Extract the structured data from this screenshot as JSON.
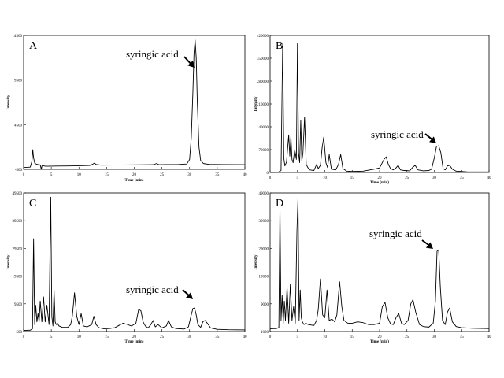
{
  "chart_data": [
    {
      "type": "line",
      "panel_label": "A",
      "xlabel": "Time (min)",
      "ylabel": "Intensity",
      "xlim": [
        0,
        40
      ],
      "ylim": [
        -500,
        14500
      ],
      "x_ticks": [
        0,
        5,
        10,
        15,
        20,
        25,
        30,
        35,
        40
      ],
      "y_ticks": [
        -500,
        4500,
        9500,
        14500
      ],
      "x_tick_labels": [
        "0",
        "5",
        "10",
        "15",
        "20",
        "25",
        "30",
        "35",
        "40"
      ],
      "y_tick_labels": [
        "-500",
        "4500",
        "9500",
        "14500"
      ],
      "annotation": {
        "text": "syringic acid",
        "x": 31.0,
        "y": 14000
      },
      "series": [
        {
          "x": [
            0,
            1.2,
            1.5,
            1.65,
            1.8,
            2.0,
            2.3,
            2.7,
            3.0,
            3.2,
            3.35,
            3.5,
            4,
            6,
            8,
            10,
            12,
            12.5,
            12.8,
            13.1,
            14,
            18,
            22,
            23.5,
            24,
            24.5,
            26,
            28,
            29.5,
            30.0,
            30.3,
            30.6,
            30.8,
            31.0,
            31.2,
            31.4,
            31.7,
            32.0,
            32.5,
            33.5,
            36,
            40
          ],
          "y": [
            -300,
            -250,
            400,
            1700,
            800,
            200,
            80,
            20,
            0,
            -700,
            0,
            -100,
            -150,
            -130,
            -120,
            -100,
            -60,
            80,
            200,
            40,
            -30,
            -10,
            10,
            20,
            150,
            20,
            30,
            50,
            100,
            600,
            3000,
            8200,
            12500,
            14000,
            12000,
            7000,
            2000,
            500,
            150,
            60,
            30,
            20
          ]
        }
      ]
    },
    {
      "type": "line",
      "panel_label": "B",
      "xlabel": "Time (min)",
      "ylabel": "Intensity",
      "xlim": [
        0,
        40
      ],
      "ylim": [
        0,
        420000
      ],
      "x_ticks": [
        0,
        5,
        10,
        15,
        20,
        25,
        30,
        35,
        40
      ],
      "y_ticks": [
        0,
        70000,
        140000,
        210000,
        280000,
        350000,
        420000
      ],
      "x_tick_labels": [
        "0",
        "5",
        "10",
        "15",
        "20",
        "25",
        "30",
        "35",
        "40"
      ],
      "y_tick_labels": [
        "0",
        "70000",
        "140000",
        "210000",
        "280000",
        "350000",
        "420000"
      ],
      "annotation": {
        "text": "syringic acid",
        "x": 30.5,
        "y": 84000
      },
      "series": [
        {
          "x": [
            0,
            1.5,
            2.0,
            2.3,
            2.5,
            2.7,
            3.0,
            3.4,
            3.6,
            3.8,
            4.0,
            4.2,
            4.5,
            4.8,
            5.0,
            5.2,
            5.4,
            5.6,
            5.8,
            6.0,
            6.3,
            6.6,
            6.9,
            7.2,
            8.0,
            8.5,
            8.8,
            9.2,
            9.5,
            9.8,
            10.2,
            10.5,
            10.8,
            11.2,
            12.0,
            12.5,
            12.9,
            13.3,
            14,
            15,
            17,
            19,
            20,
            20.8,
            21.2,
            21.6,
            22,
            22.5,
            23.0,
            23.4,
            23.8,
            24.5,
            25.5,
            26.0,
            26.5,
            27.0,
            28,
            29,
            29.5,
            30.0,
            30.4,
            30.8,
            31.2,
            31.6,
            32.0,
            32.4,
            32.8,
            33.3,
            34.0,
            36,
            40
          ],
          "y": [
            0,
            1000,
            6000,
            395000,
            45000,
            20000,
            32000,
            115000,
            50000,
            110000,
            40000,
            30000,
            70000,
            40000,
            395000,
            60000,
            30000,
            160000,
            35000,
            60000,
            170000,
            25000,
            15000,
            8000,
            6000,
            25000,
            12000,
            22000,
            75000,
            108000,
            30000,
            15000,
            55000,
            10000,
            8000,
            25000,
            55000,
            12000,
            4000,
            3000,
            4000,
            10000,
            14000,
            40000,
            48000,
            25000,
            12000,
            8000,
            14000,
            22000,
            8000,
            6000,
            5000,
            15000,
            22000,
            8000,
            5000,
            6000,
            10000,
            45000,
            80000,
            82000,
            60000,
            12000,
            8000,
            20000,
            22000,
            10000,
            4000,
            2000,
            1500
          ]
        }
      ]
    },
    {
      "type": "line",
      "panel_label": "C",
      "xlabel": "Time (min)",
      "ylabel": "Intensity",
      "xlim": [
        0,
        40
      ],
      "ylim": [
        -500,
        49500
      ],
      "x_ticks": [
        0,
        5,
        10,
        15,
        20,
        25,
        30,
        35,
        40
      ],
      "y_ticks": [
        -500,
        9500,
        19500,
        29500,
        39500,
        49500
      ],
      "x_tick_labels": [
        "0",
        "5",
        "10",
        "15",
        "20",
        "25",
        "30",
        "35",
        "40"
      ],
      "y_tick_labels": [
        "-500",
        "9500",
        "19500",
        "29500",
        "39500",
        "49500"
      ],
      "annotation": {
        "text": "syringic acid",
        "x": 30.8,
        "y": 7700
      },
      "series": [
        {
          "x": [
            0,
            1.2,
            1.6,
            1.8,
            2.0,
            2.2,
            2.4,
            2.6,
            2.8,
            3.0,
            3.3,
            3.6,
            3.9,
            4.2,
            4.6,
            4.9,
            5.1,
            5.3,
            5.5,
            5.7,
            5.9,
            6.1,
            6.4,
            7,
            8,
            8.5,
            8.8,
            9.2,
            9.6,
            10.0,
            10.4,
            10.8,
            11.5,
            12.3,
            12.7,
            13.1,
            13.6,
            14.5,
            15.5,
            16.5,
            17.5,
            18,
            18.5,
            19.5,
            20.3,
            20.8,
            21.2,
            21.6,
            22,
            22.5,
            23.0,
            23.4,
            23.8,
            24.3,
            25,
            25.8,
            26.2,
            26.7,
            27.5,
            29,
            29.8,
            30.3,
            30.6,
            30.9,
            31.2,
            31.5,
            32.0,
            32.4,
            32.8,
            33.2,
            33.8,
            35,
            37,
            40
          ],
          "y": [
            -100,
            0,
            500,
            33000,
            2000,
            9000,
            3000,
            6000,
            3000,
            10500,
            3000,
            12000,
            3000,
            9000,
            2000,
            48000,
            5000,
            1500,
            14500,
            3000,
            2000,
            2500,
            1500,
            1000,
            1000,
            2000,
            5000,
            13500,
            5000,
            2000,
            6000,
            1500,
            1200,
            2000,
            5000,
            2000,
            900,
            500,
            600,
            900,
            2000,
            2500,
            2200,
            1500,
            2500,
            7500,
            7000,
            3000,
            1500,
            800,
            2000,
            3500,
            1200,
            2000,
            800,
            1500,
            3500,
            1200,
            600,
            400,
            1200,
            5500,
            7800,
            8000,
            5500,
            2000,
            1000,
            3000,
            3500,
            2500,
            800,
            300,
            150,
            100
          ]
        }
      ]
    },
    {
      "type": "line",
      "panel_label": "D",
      "xlabel": "Time (min)",
      "ylabel": "Intensity",
      "xlim": [
        0,
        40
      ],
      "ylim": [
        -1000,
        49000
      ],
      "x_ticks": [
        0,
        5,
        10,
        15,
        20,
        25,
        30,
        35,
        40
      ],
      "y_ticks": [
        -1000,
        9000,
        19000,
        29000,
        39000,
        49000
      ],
      "x_tick_labels": [
        "0",
        "5",
        "10",
        "15",
        "20",
        "25",
        "30",
        "35",
        "40"
      ],
      "y_tick_labels": [
        "-1000",
        "9000",
        "19000",
        "29000",
        "39000",
        "49000"
      ],
      "annotation": {
        "text": "syringic acid",
        "x": 30.5,
        "y": 28000
      },
      "series": [
        {
          "x": [
            0,
            1.2,
            1.6,
            1.8,
            2.0,
            2.2,
            2.4,
            2.6,
            2.8,
            3.1,
            3.4,
            3.7,
            4.0,
            4.3,
            4.6,
            4.9,
            5.1,
            5.3,
            5.5,
            5.7,
            5.9,
            6.2,
            6.5,
            7,
            8,
            8.5,
            8.8,
            9.2,
            9.6,
            10.0,
            10.4,
            10.8,
            11.3,
            11.8,
            12.2,
            12.7,
            13.1,
            13.5,
            14.2,
            15,
            16,
            17,
            18,
            19,
            20,
            20.5,
            21.0,
            21.5,
            22,
            22.5,
            23.0,
            23.5,
            24,
            24.5,
            25.2,
            25.7,
            26.1,
            26.6,
            27.3,
            28,
            29,
            29.8,
            30.2,
            30.5,
            30.8,
            31.1,
            31.5,
            32.0,
            32.4,
            32.8,
            33.3,
            34,
            35,
            37,
            40
          ],
          "y": [
            0,
            100,
            500,
            44000,
            3000,
            12000,
            2000,
            10000,
            3000,
            15000,
            2000,
            16000,
            3000,
            8000,
            2000,
            35000,
            47000,
            3000,
            14000,
            4000,
            2500,
            1500,
            2000,
            1500,
            1200,
            3000,
            7000,
            18000,
            5000,
            4000,
            14000,
            3000,
            3500,
            2500,
            5000,
            17000,
            8000,
            3000,
            2000,
            2000,
            2500,
            2200,
            1500,
            1500,
            2000,
            8000,
            9500,
            4000,
            1800,
            1500,
            4000,
            5500,
            2000,
            1500,
            3000,
            9000,
            10500,
            6000,
            1500,
            800,
            600,
            2000,
            10000,
            28000,
            28500,
            15000,
            3000,
            1500,
            6000,
            7500,
            2500,
            800,
            400,
            200,
            100
          ]
        }
      ]
    }
  ]
}
